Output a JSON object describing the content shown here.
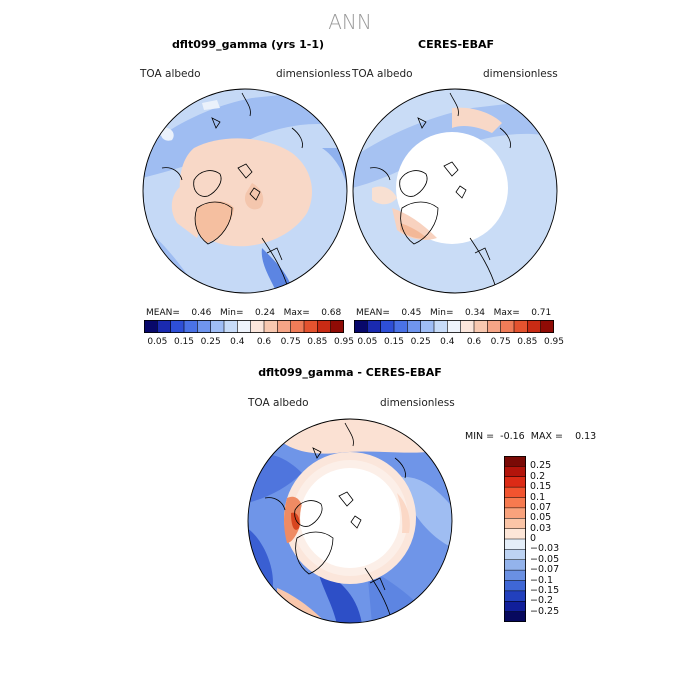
{
  "page": {
    "title": "ANN"
  },
  "panels": [
    {
      "title": "dflt099_gamma (yrs 1-1)",
      "left_label": "TOA albedo",
      "right_label": "dimensionless",
      "stats": {
        "mean_label": "MEAN=",
        "mean": "0.46",
        "min_label": "Min=",
        "min": "0.24",
        "max_label": "Max=",
        "max": "0.68"
      }
    },
    {
      "title": "CERES-EBAF",
      "left_label": "TOA albedo",
      "right_label": "dimensionless",
      "stats": {
        "mean_label": "MEAN=",
        "mean": "0.45",
        "min_label": "Min=",
        "min": "0.34",
        "max_label": "Max=",
        "max": "0.71"
      }
    }
  ],
  "colorbar": {
    "ticks": [
      "0.05",
      "0.15",
      "0.25",
      "0.4",
      "0.6",
      "0.75",
      "0.85",
      "0.95"
    ],
    "colors": [
      "#08086b",
      "#1a2ab0",
      "#2e4fd6",
      "#4a72e6",
      "#6f95ee",
      "#9fbdf5",
      "#c7dbf8",
      "#eef3fb",
      "#fbe6dc",
      "#f8c8b0",
      "#f5a486",
      "#ef7c58",
      "#e4532f",
      "#c92b14",
      "#8f0b05"
    ]
  },
  "diff": {
    "title": "dflt099_gamma - CERES-EBAF",
    "left_label": "TOA albedo",
    "right_label": "dimensionless",
    "min_label": "MIN =",
    "min": "-0.16",
    "max_label": "MAX =",
    "max": "0.13",
    "colorbar": {
      "ticks": [
        "0.25",
        "0.2",
        "0.15",
        "0.1",
        "0.07",
        "0.05",
        "0.03",
        "0",
        "−0.03",
        "−0.05",
        "−0.07",
        "−0.1",
        "−0.15",
        "−0.2",
        "−0.25"
      ],
      "colors": [
        "#7a0a06",
        "#b3140b",
        "#dc2b16",
        "#f2542f",
        "#f77a4f",
        "#f9a27c",
        "#fbc5a7",
        "#fde6d8",
        "#e4eef9",
        "#bdd3f3",
        "#93b3ec",
        "#6a90e3",
        "#3f67d6",
        "#2240bd",
        "#111f9a",
        "#07095e"
      ]
    }
  },
  "chart_data": [
    {
      "type": "heatmap",
      "title": "dflt099_gamma (yrs 1-1)",
      "variable": "TOA albedo",
      "units": "dimensionless",
      "mean": 0.46,
      "min": 0.24,
      "max": 0.68,
      "levels": [
        0.05,
        0.15,
        0.25,
        0.4,
        0.6,
        0.75,
        0.85,
        0.95
      ]
    },
    {
      "type": "heatmap",
      "title": "CERES-EBAF",
      "variable": "TOA albedo",
      "units": "dimensionless",
      "mean": 0.45,
      "min": 0.34,
      "max": 0.71,
      "levels": [
        0.05,
        0.15,
        0.25,
        0.4,
        0.6,
        0.75,
        0.85,
        0.95
      ]
    },
    {
      "type": "heatmap",
      "title": "dflt099_gamma - CERES-EBAF",
      "variable": "TOA albedo",
      "units": "dimensionless",
      "min": -0.16,
      "max": 0.13,
      "levels": [
        -0.25,
        -0.2,
        -0.15,
        -0.1,
        -0.07,
        -0.05,
        -0.03,
        0,
        0.03,
        0.05,
        0.07,
        0.1,
        0.15,
        0.2,
        0.25
      ]
    }
  ]
}
